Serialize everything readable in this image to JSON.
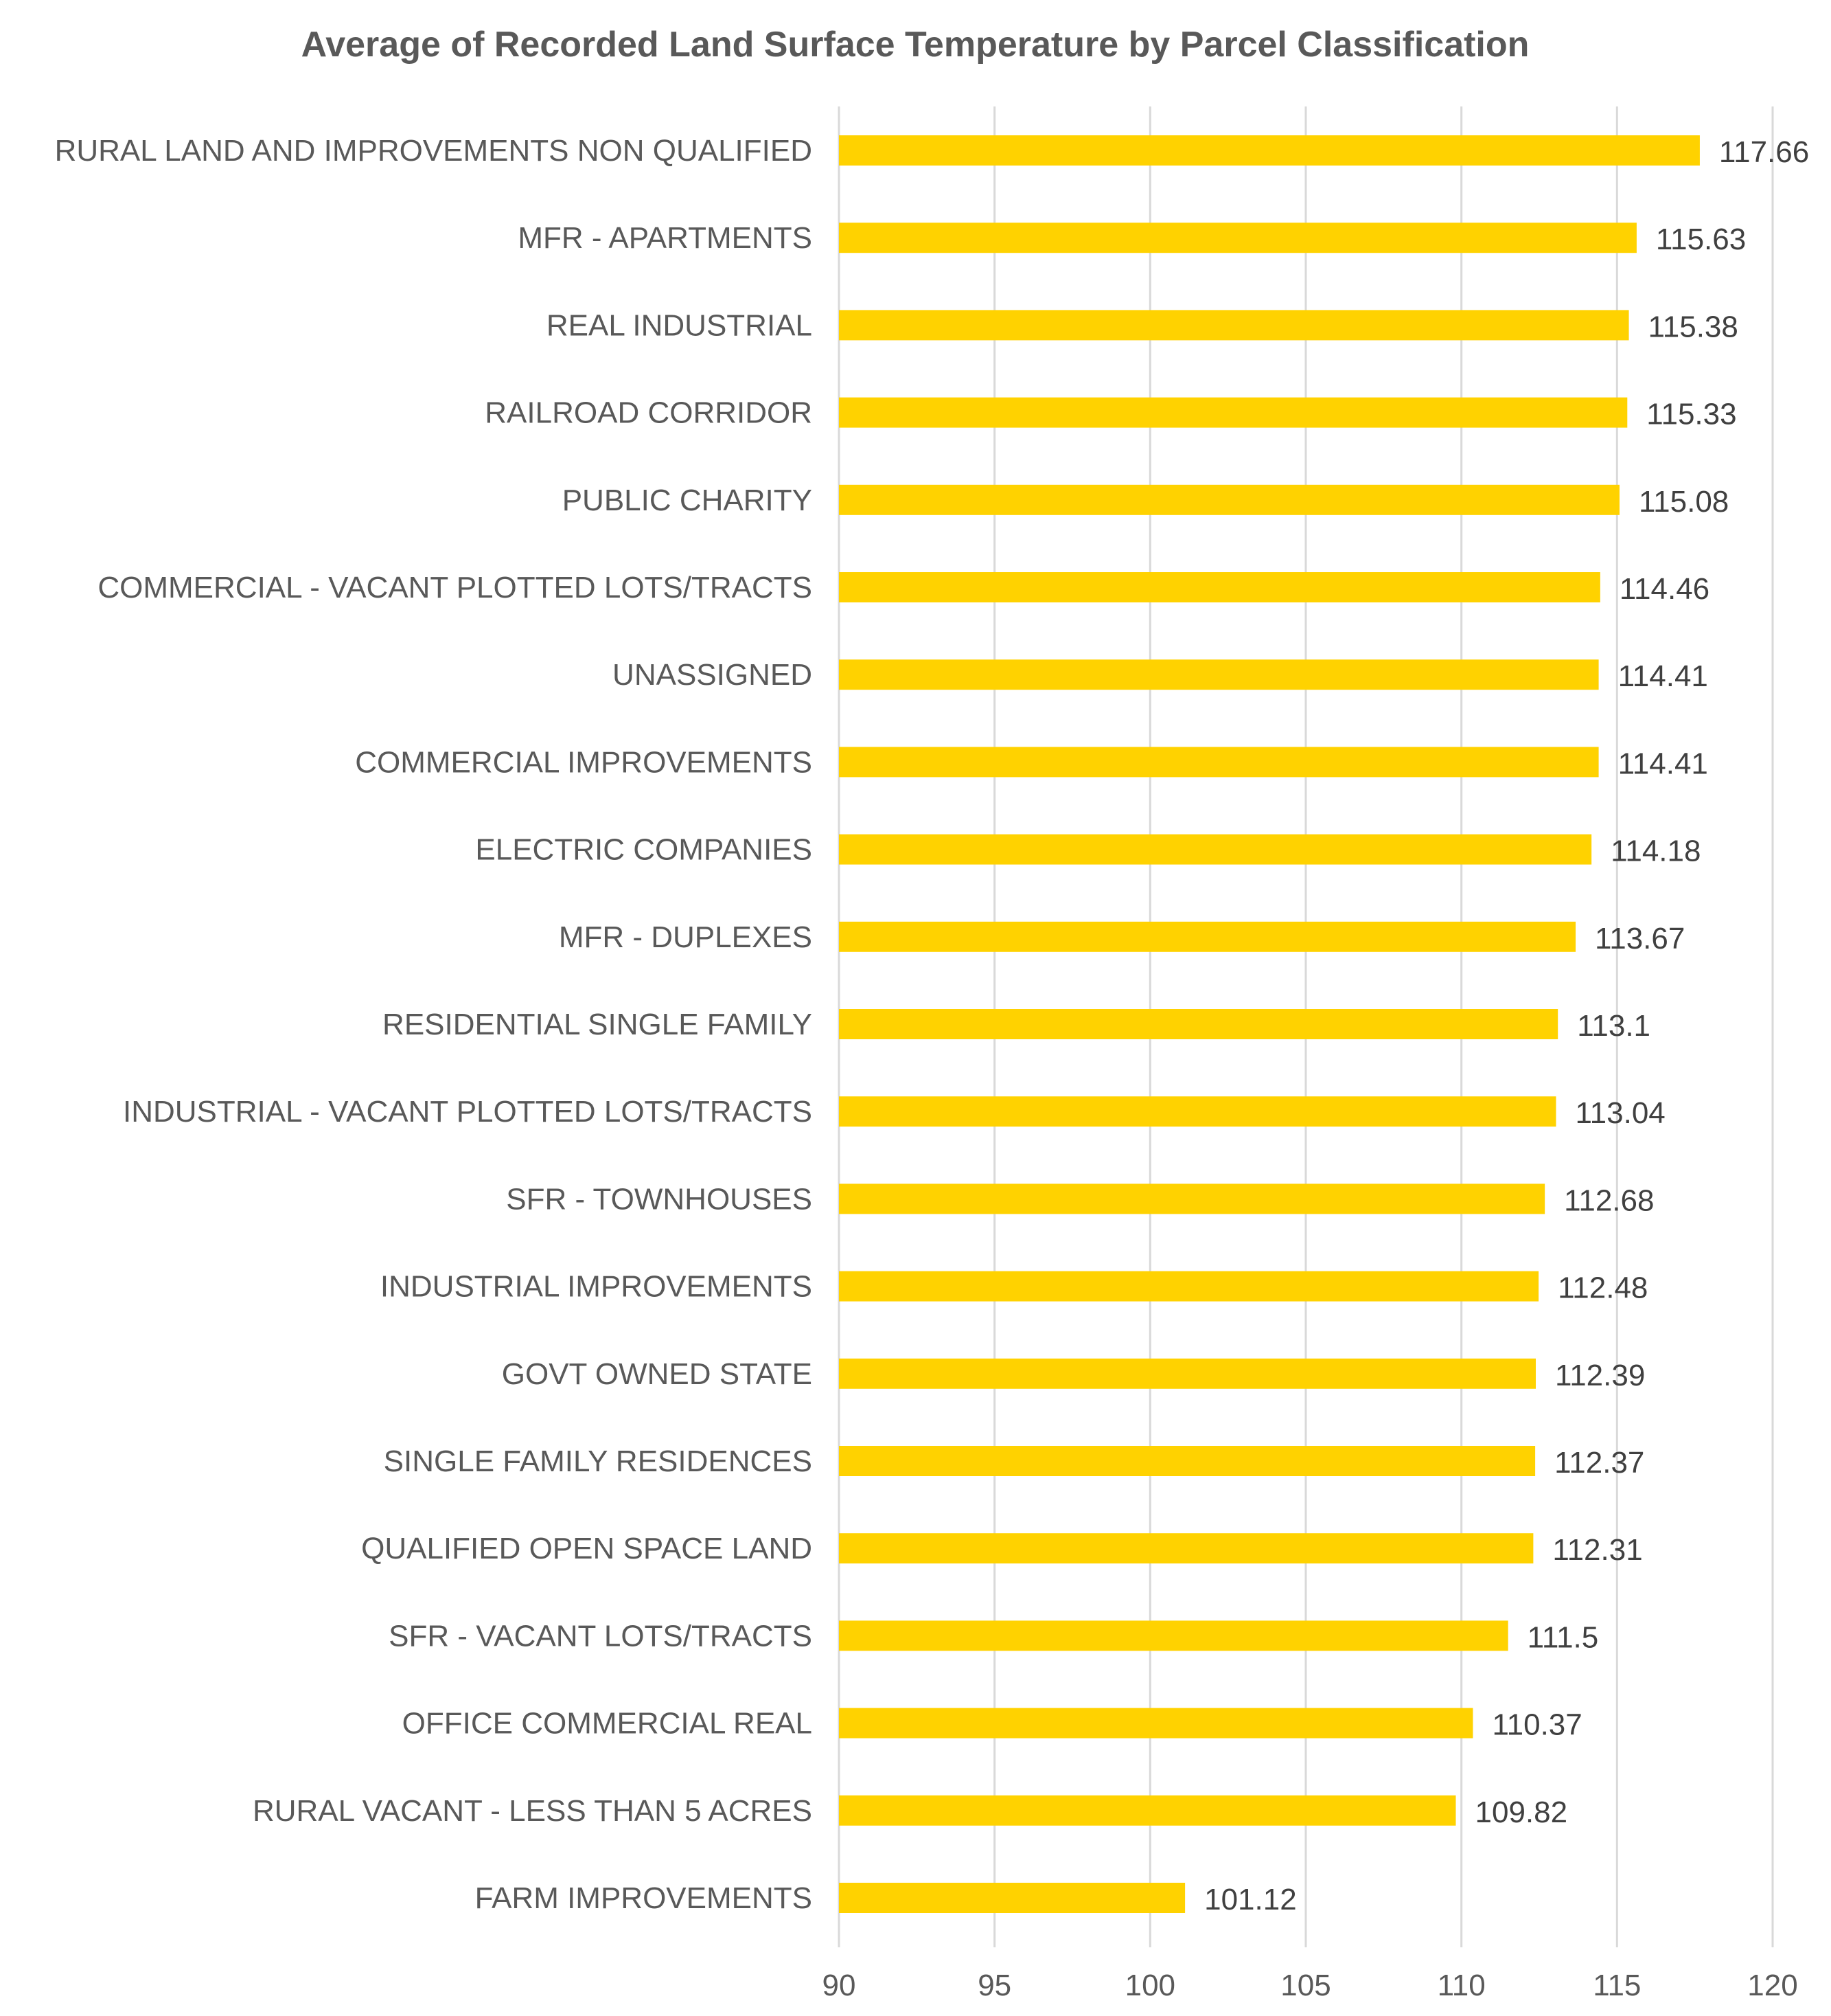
{
  "chart_data": {
    "type": "bar",
    "orientation": "horizontal",
    "title": "Average of Recorded Land Surface Temperature by Parcel Classification",
    "xlabel": "",
    "ylabel": "",
    "xlim": [
      90,
      120
    ],
    "ticks": [
      90,
      95,
      100,
      105,
      110,
      115,
      120
    ],
    "tick_labels": [
      "90",
      "95",
      "100",
      "105",
      "110",
      "115",
      "120"
    ],
    "grid": true,
    "legend": "none",
    "bar_color": "#FFD200",
    "categories": [
      "RURAL LAND AND IMPROVEMENTS NON QUALIFIED",
      "MFR - APARTMENTS",
      "REAL INDUSTRIAL",
      "RAILROAD CORRIDOR",
      "PUBLIC CHARITY",
      "COMMERCIAL - VACANT PLOTTED LOTS/TRACTS",
      "UNASSIGNED",
      "COMMERCIAL IMPROVEMENTS",
      "ELECTRIC COMPANIES",
      "MFR - DUPLEXES",
      "RESIDENTIAL SINGLE FAMILY",
      "INDUSTRIAL - VACANT PLOTTED LOTS/TRACTS",
      "SFR - TOWNHOUSES",
      "INDUSTRIAL IMPROVEMENTS",
      "GOVT OWNED STATE",
      "SINGLE FAMILY RESIDENCES",
      "QUALIFIED OPEN SPACE LAND",
      "SFR - VACANT LOTS/TRACTS",
      "OFFICE COMMERCIAL REAL",
      "RURAL VACANT - LESS THAN 5 ACRES",
      "FARM IMPROVEMENTS"
    ],
    "values": [
      117.66,
      115.63,
      115.38,
      115.33,
      115.08,
      114.46,
      114.41,
      114.41,
      114.18,
      113.67,
      113.1,
      113.04,
      112.68,
      112.48,
      112.39,
      112.37,
      112.31,
      111.5,
      110.37,
      109.82,
      101.12
    ],
    "value_labels": [
      "117.66",
      "115.63",
      "115.38",
      "115.33",
      "115.08",
      "114.46",
      "114.41",
      "114.41",
      "114.18",
      "113.67",
      "113.1",
      "113.04",
      "112.68",
      "112.48",
      "112.39",
      "112.37",
      "112.31",
      "111.5",
      "110.37",
      "109.82",
      "101.12"
    ]
  }
}
